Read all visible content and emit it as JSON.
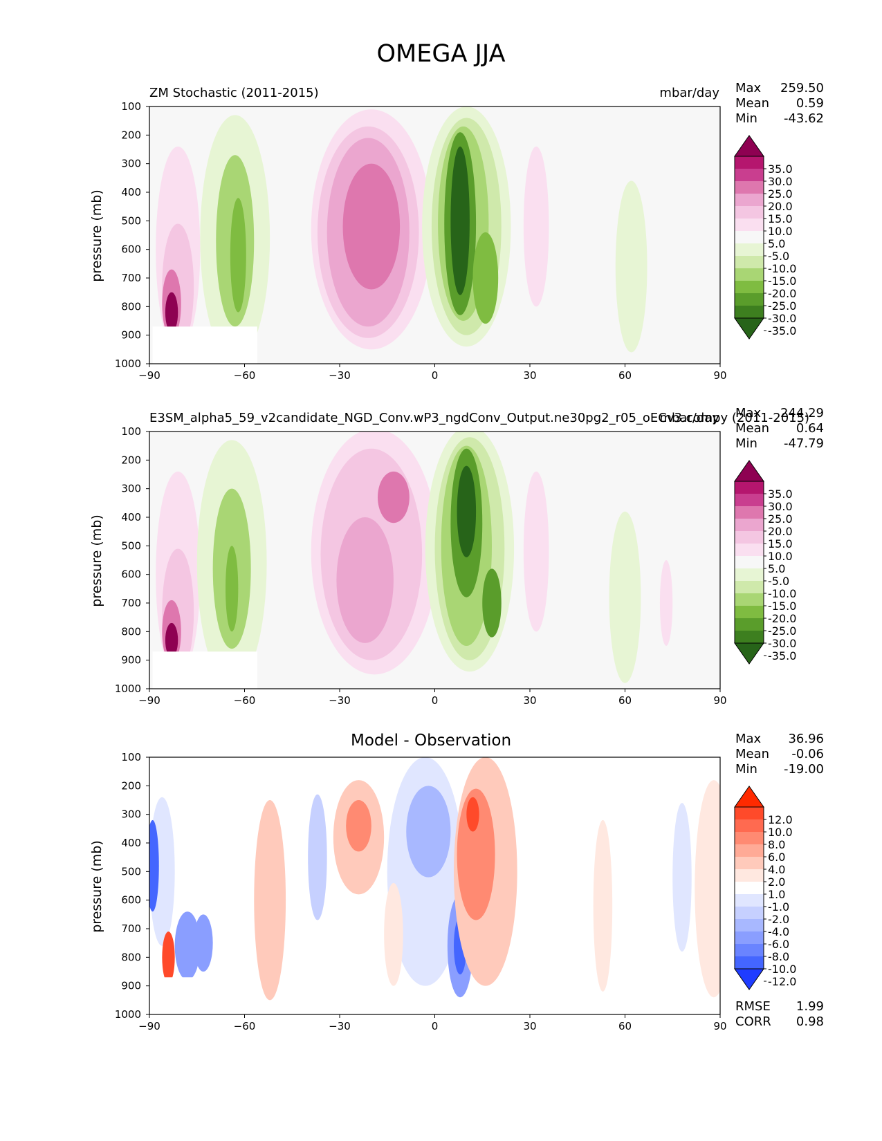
{
  "figure_title": "OMEGA JJA",
  "chart_data": [
    {
      "type": "contour",
      "title_left": "ZM Stochastic (2011-2015)",
      "title_right": "mbar/day",
      "title_center": "",
      "xlabel": "",
      "ylabel": "pressure (mb)",
      "xlim": [
        -90,
        90
      ],
      "ylim": [
        1000,
        100
      ],
      "x_ticks": [
        "−90",
        "−60",
        "−30",
        "0",
        "30",
        "60",
        "90"
      ],
      "y_ticks": [
        "100",
        "200",
        "300",
        "400",
        "500",
        "600",
        "700",
        "800",
        "900",
        "1000"
      ],
      "stats": [
        {
          "label": "Max",
          "value": "259.50"
        },
        {
          "label": "Mean",
          "value": "0.59"
        },
        {
          "label": "Min",
          "value": "-43.62"
        }
      ],
      "colorbar_ticks": [
        "35.0",
        "30.0",
        "25.0",
        "20.0",
        "15.0",
        "10.0",
        "5.0",
        "-5.0",
        "-10.0",
        "-15.0",
        "-20.0",
        "-25.0",
        "-30.0",
        "-35.0"
      ],
      "colorbar_colors": [
        "#8e0152",
        "#b5166e",
        "#c93e8f",
        "#de77ae",
        "#eba6cf",
        "#f4c6e2",
        "#fadff0",
        "#f7f7f7",
        "#e7f5d4",
        "#cfe9ab",
        "#a9d674",
        "#7fbc41",
        "#5a9d2b",
        "#3d7f1f",
        "#276419"
      ],
      "bottom_stats": []
    },
    {
      "type": "contour",
      "title_left": "E3SM_alpha5_59_v2candidate_NGD_Conv.wP3_ngdConv_Output.ne30pg2_r05_oECv3.compy (2011-2015)",
      "title_right": "mbar/day",
      "title_center": "",
      "xlabel": "",
      "ylabel": "pressure (mb)",
      "xlim": [
        -90,
        90
      ],
      "ylim": [
        1000,
        100
      ],
      "x_ticks": [
        "−90",
        "−60",
        "−30",
        "0",
        "30",
        "60",
        "90"
      ],
      "y_ticks": [
        "100",
        "200",
        "300",
        "400",
        "500",
        "600",
        "700",
        "800",
        "900",
        "1000"
      ],
      "stats": [
        {
          "label": "Max",
          "value": "244.29"
        },
        {
          "label": "Mean",
          "value": "0.64"
        },
        {
          "label": "Min",
          "value": "-47.79"
        }
      ],
      "colorbar_ticks": [
        "35.0",
        "30.0",
        "25.0",
        "20.0",
        "15.0",
        "10.0",
        "5.0",
        "-5.0",
        "-10.0",
        "-15.0",
        "-20.0",
        "-25.0",
        "-30.0",
        "-35.0"
      ],
      "colorbar_colors": [
        "#8e0152",
        "#b5166e",
        "#c93e8f",
        "#de77ae",
        "#eba6cf",
        "#f4c6e2",
        "#fadff0",
        "#f7f7f7",
        "#e7f5d4",
        "#cfe9ab",
        "#a9d674",
        "#7fbc41",
        "#5a9d2b",
        "#3d7f1f",
        "#276419"
      ],
      "bottom_stats": []
    },
    {
      "type": "contour",
      "title_left": "",
      "title_right": "",
      "title_center": "Model - Observation",
      "xlabel": "",
      "ylabel": "pressure (mb)",
      "xlim": [
        -90,
        90
      ],
      "ylim": [
        1000,
        100
      ],
      "x_ticks": [
        "−90",
        "−60",
        "−30",
        "0",
        "30",
        "60",
        "90"
      ],
      "y_ticks": [
        "100",
        "200",
        "300",
        "400",
        "500",
        "600",
        "700",
        "800",
        "900",
        "1000"
      ],
      "stats": [
        {
          "label": "Max",
          "value": "36.96"
        },
        {
          "label": "Mean",
          "value": "-0.06"
        },
        {
          "label": "Min",
          "value": "-19.00"
        }
      ],
      "colorbar_ticks": [
        "12.0",
        "10.0",
        "8.0",
        "6.0",
        "4.0",
        "2.0",
        "1.0",
        "-1.0",
        "-2.0",
        "-4.0",
        "-6.0",
        "-8.0",
        "-10.0",
        "-12.0"
      ],
      "colorbar_colors": [
        "#ff2a00",
        "#ff4a2a",
        "#ff6a50",
        "#ff8a72",
        "#ffaa96",
        "#ffcabb",
        "#ffe8e0",
        "#ffffff",
        "#e0e6ff",
        "#c6d0ff",
        "#a8b8ff",
        "#8a9eff",
        "#6a84ff",
        "#4466ff",
        "#1f3cff"
      ],
      "bottom_stats": [
        {
          "label": "RMSE",
          "value": "1.99"
        },
        {
          "label": "CORR",
          "value": "0.98"
        }
      ]
    }
  ]
}
